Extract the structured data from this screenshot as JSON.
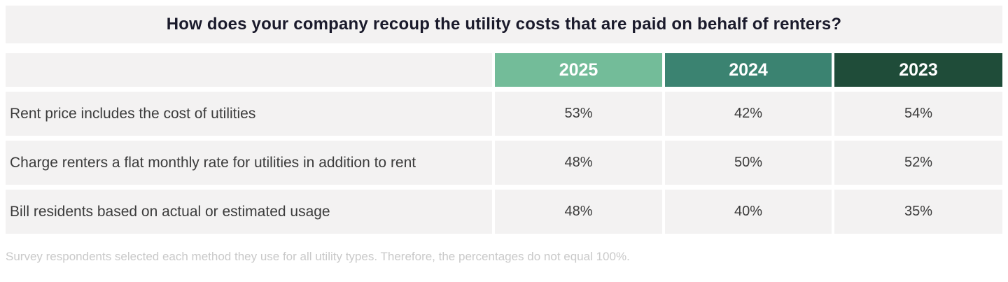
{
  "title": "How does your company recoup the utility costs that are paid on behalf of renters?",
  "footnote": "Survey respondents selected each method they use for all utility types. Therefore, the percentages do not equal 100%.",
  "colors": {
    "band_bg": "#F3F2F2",
    "year_2025": "#73BC99",
    "year_2024": "#3B8371",
    "year_2023": "#1F4C39",
    "title_text": "#1A1A2B",
    "body_text": "#3B3B3B",
    "footnote_text": "#C9C9C9",
    "header_text": "#FFFFFF"
  },
  "table": {
    "columns": [
      "2025",
      "2024",
      "2023"
    ],
    "rows": [
      {
        "label": "Rent price includes the cost of utilities",
        "values": [
          "53%",
          "42%",
          "54%"
        ]
      },
      {
        "label": "Charge renters a flat monthly rate for utilities in addition to rent",
        "values": [
          "48%",
          "50%",
          "52%"
        ]
      },
      {
        "label": "Bill residents based on actual or estimated usage",
        "values": [
          "48%",
          "40%",
          "35%"
        ]
      }
    ]
  },
  "chart_data": {
    "type": "table",
    "title": "How does your company recoup the utility costs that are paid on behalf of renters?",
    "categories": [
      "Rent price includes the cost of utilities",
      "Charge renters a flat monthly rate for utilities in addition to rent",
      "Bill residents based on actual or estimated usage"
    ],
    "series": [
      {
        "name": "2025",
        "values": [
          53,
          48,
          48
        ]
      },
      {
        "name": "2024",
        "values": [
          42,
          50,
          40
        ]
      },
      {
        "name": "2023",
        "values": [
          54,
          52,
          35
        ]
      }
    ],
    "unit": "%",
    "note": "Survey respondents selected each method they use for all utility types. Therefore, the percentages do not equal 100%."
  }
}
